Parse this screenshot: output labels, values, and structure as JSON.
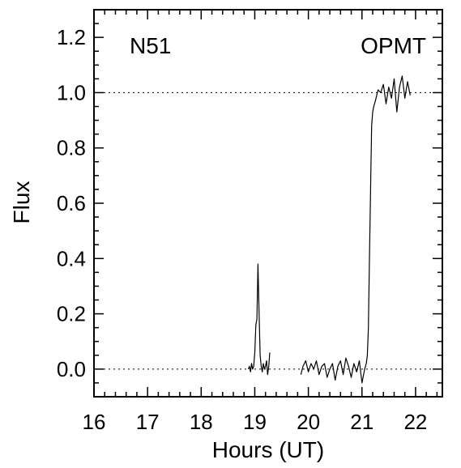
{
  "chart_data": {
    "type": "line",
    "xlabel": "Hours (UT)",
    "ylabel": "Flux",
    "xlim": [
      16,
      22.5
    ],
    "ylim": [
      -0.1,
      1.3
    ],
    "x_ticks": [
      16,
      17,
      18,
      19,
      20,
      21,
      22
    ],
    "y_ticks": [
      0.0,
      0.2,
      0.4,
      0.6,
      0.8,
      1.0,
      1.2
    ],
    "x_tick_labels": [
      "16",
      "17",
      "18",
      "19",
      "20",
      "21",
      "22"
    ],
    "y_tick_labels": [
      "0.0",
      "0.2",
      "0.4",
      "0.6",
      "0.8",
      "1.0",
      "1.2"
    ],
    "reference_lines": [
      0.0,
      1.0
    ],
    "grid": false,
    "annotations": {
      "left": "N51",
      "right": "OPMT"
    },
    "series": [
      {
        "values_note": "",
        "x": [
          18.88,
          18.9,
          18.92,
          18.94,
          18.96,
          18.98,
          19.0,
          19.02,
          19.04,
          19.06,
          19.08,
          19.1,
          19.12,
          19.14,
          19.16,
          19.18,
          19.2,
          19.22,
          19.24,
          19.26,
          19.28
        ],
        "y": [
          0.0,
          0.01,
          -0.01,
          0.02,
          0.0,
          0.01,
          0.06,
          0.16,
          0.18,
          0.38,
          0.2,
          0.05,
          0.01,
          -0.01,
          0.02,
          0.0,
          0.01,
          0.03,
          -0.02,
          0.01,
          0.06
        ]
      },
      {
        "x": [
          19.86,
          19.9,
          19.95,
          20.0,
          20.05,
          20.1,
          20.15,
          20.2,
          20.25,
          20.3,
          20.35,
          20.4,
          20.45,
          20.5,
          20.55,
          20.6,
          20.65,
          20.7,
          20.75,
          20.8,
          20.85,
          20.9,
          20.95,
          21.0,
          21.05,
          21.08,
          21.1,
          21.12,
          21.14,
          21.16,
          21.18,
          21.2,
          21.22,
          21.25,
          21.3,
          21.35,
          21.4,
          21.45,
          21.5,
          21.55,
          21.6,
          21.65,
          21.7,
          21.75,
          21.8,
          21.85,
          21.9
        ],
        "y": [
          -0.02,
          0.01,
          0.03,
          -0.01,
          0.02,
          0.0,
          0.03,
          -0.02,
          0.01,
          0.02,
          -0.03,
          0.0,
          0.02,
          -0.04,
          0.01,
          0.03,
          -0.02,
          0.04,
          0.01,
          -0.03,
          0.02,
          -0.01,
          0.03,
          -0.05,
          0.0,
          0.02,
          0.05,
          0.15,
          0.4,
          0.65,
          0.88,
          0.93,
          0.95,
          0.97,
          1.01,
          1.0,
          1.03,
          0.96,
          1.02,
          0.98,
          1.05,
          0.93,
          1.02,
          1.06,
          0.98,
          1.04,
          0.99
        ]
      }
    ]
  }
}
